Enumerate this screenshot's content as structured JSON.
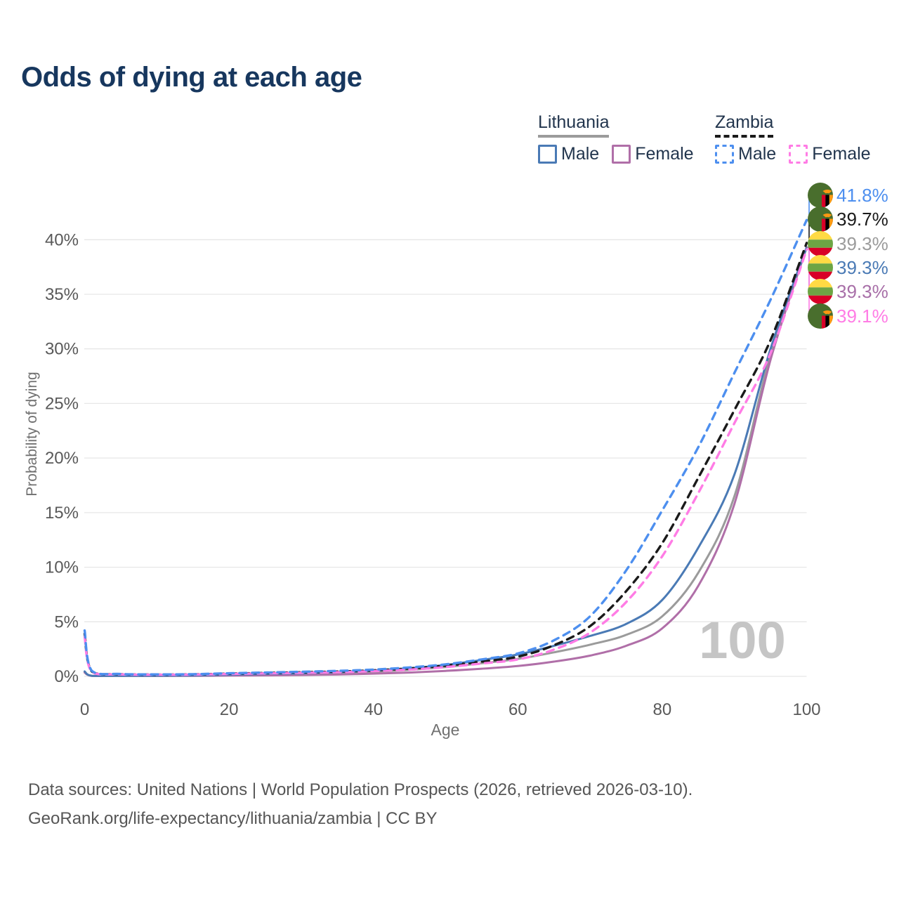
{
  "title": "Odds of dying at each age",
  "legend": {
    "groups": [
      {
        "label": "Lithuania",
        "line_style": "solid",
        "underline_color": "#9b9b9b",
        "items": [
          {
            "label": "Male",
            "color": "#4a7ab5"
          },
          {
            "label": "Female",
            "color": "#b06fa8"
          }
        ]
      },
      {
        "label": "Zambia",
        "line_style": "dashed",
        "underline_color": "#1a1a1a",
        "items": [
          {
            "label": "Male",
            "color": "#4d8fef"
          },
          {
            "label": "Female",
            "color": "#ff7ce5"
          }
        ]
      }
    ]
  },
  "axes": {
    "y_label": "Probability of dying",
    "x_label": "Age",
    "y_ticks": [
      "0%",
      "5%",
      "10%",
      "15%",
      "20%",
      "25%",
      "30%",
      "35%",
      "40%"
    ],
    "x_ticks": [
      "0",
      "20",
      "40",
      "60",
      "80",
      "100"
    ]
  },
  "watermark": "100",
  "labels": [
    {
      "flag": "zambia",
      "value": "41.8%",
      "color": "#4d8fef"
    },
    {
      "flag": "zambia",
      "value": "39.7%",
      "color": "#1a1a1a"
    },
    {
      "flag": "lithuania",
      "value": "39.3%",
      "color": "#9b9b9b"
    },
    {
      "flag": "lithuania",
      "value": "39.3%",
      "color": "#4a7ab5"
    },
    {
      "flag": "lithuania",
      "value": "39.3%",
      "color": "#a86fa8"
    },
    {
      "flag": "zambia",
      "value": "39.1%",
      "color": "#ff7ce5"
    }
  ],
  "footer": {
    "line1": "Data sources: United Nations | World Population Prospects (2026, retrieved 2026-03-10).",
    "line2": "GeoRank.org/life-expectancy/lithuania/zambia | CC BY"
  },
  "chart_data": {
    "type": "line",
    "title": "Odds of dying at each age",
    "xlabel": "Age",
    "ylabel": "Probability of dying",
    "xlim": [
      0,
      100
    ],
    "ylim": [
      0,
      43
    ],
    "unit": "percent",
    "grid": "horizontal",
    "legend_position": "top-right",
    "x": [
      0,
      1,
      5,
      10,
      15,
      20,
      25,
      30,
      35,
      40,
      45,
      50,
      55,
      60,
      65,
      70,
      75,
      80,
      85,
      90,
      95,
      100
    ],
    "series": [
      {
        "name": "Lithuania Both sexes",
        "country": "lithuania",
        "sex": "both",
        "color": "#9b9b9b",
        "dash": false,
        "end_label": "39.3%",
        "values": [
          0.4,
          0.04,
          0.03,
          0.03,
          0.06,
          0.12,
          0.17,
          0.22,
          0.3,
          0.42,
          0.6,
          0.85,
          1.2,
          1.6,
          2.2,
          2.9,
          3.8,
          5.5,
          9.5,
          16.5,
          29.5,
          39.3
        ]
      },
      {
        "name": "Lithuania Female",
        "country": "lithuania",
        "sex": "female",
        "color": "#b06fa8",
        "dash": false,
        "end_label": "39.3%",
        "values": [
          0.35,
          0.04,
          0.02,
          0.02,
          0.04,
          0.07,
          0.09,
          0.12,
          0.17,
          0.25,
          0.35,
          0.5,
          0.7,
          0.95,
          1.35,
          1.9,
          2.8,
          4.4,
          8.3,
          15.8,
          29.0,
          39.3
        ]
      },
      {
        "name": "Lithuania Male",
        "country": "lithuania",
        "sex": "male",
        "color": "#4a7ab5",
        "dash": false,
        "end_label": "39.3%",
        "values": [
          0.45,
          0.05,
          0.03,
          0.03,
          0.08,
          0.15,
          0.22,
          0.28,
          0.38,
          0.52,
          0.75,
          1.05,
          1.5,
          2.0,
          2.8,
          3.7,
          4.8,
          7.0,
          11.8,
          18.5,
          30.0,
          39.3
        ]
      },
      {
        "name": "Zambia Both sexes",
        "country": "zambia",
        "sex": "both",
        "color": "#1a1a1a",
        "dash": true,
        "end_label": "39.7%",
        "values": [
          3.9,
          0.45,
          0.2,
          0.16,
          0.18,
          0.25,
          0.31,
          0.37,
          0.44,
          0.55,
          0.72,
          0.98,
          1.35,
          1.8,
          2.85,
          4.6,
          7.8,
          12.2,
          18.2,
          24.4,
          30.8,
          39.7
        ]
      },
      {
        "name": "Zambia Female",
        "country": "zambia",
        "sex": "female",
        "color": "#ff7ce5",
        "dash": true,
        "end_label": "39.1%",
        "values": [
          3.6,
          0.42,
          0.18,
          0.15,
          0.16,
          0.22,
          0.27,
          0.32,
          0.38,
          0.48,
          0.62,
          0.85,
          1.18,
          1.55,
          2.45,
          4.0,
          6.8,
          11.0,
          16.8,
          23.2,
          29.6,
          39.1
        ]
      },
      {
        "name": "Zambia Male",
        "country": "zambia",
        "sex": "male",
        "color": "#4d8fef",
        "dash": true,
        "end_label": "41.8%",
        "values": [
          4.2,
          0.5,
          0.22,
          0.18,
          0.2,
          0.28,
          0.35,
          0.42,
          0.5,
          0.62,
          0.82,
          1.1,
          1.55,
          2.1,
          3.3,
          5.5,
          9.7,
          15.2,
          21.0,
          27.8,
          34.5,
          41.8
        ]
      }
    ]
  }
}
